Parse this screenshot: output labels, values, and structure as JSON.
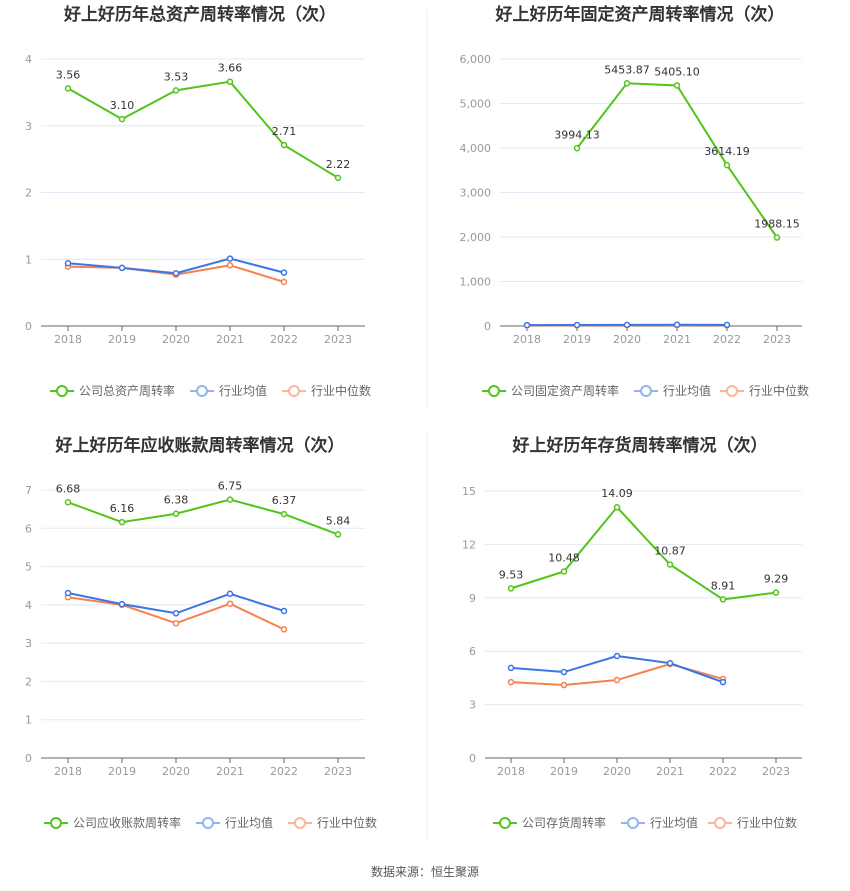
{
  "source": "数据来源：恒生聚源",
  "legend_colors": {
    "company": "#52c41a",
    "avg": "#3b75e6",
    "median": "#f5814f",
    "avg_legend": "#93b4f1",
    "median_legend": "#fbb597"
  },
  "chart_data": [
    {
      "type": "line",
      "title": "好上好历年总资产周转率情况（次）",
      "categories": [
        "2018",
        "2019",
        "2020",
        "2021",
        "2022",
        "2023"
      ],
      "ylim": [
        0,
        4
      ],
      "yticks": [
        "0",
        "1",
        "2",
        "3",
        "4"
      ],
      "legend_position": "bottom",
      "series": [
        {
          "name": "公司总资产周转率",
          "values": [
            3.56,
            3.1,
            3.53,
            3.66,
            2.71,
            2.22
          ],
          "labels": [
            "3.56",
            "3.10",
            "3.53",
            "3.66",
            "2.71",
            "2.22"
          ]
        },
        {
          "name": "行业均值",
          "values": [
            0.94,
            0.87,
            0.79,
            1.01,
            0.8,
            null
          ]
        },
        {
          "name": "行业中位数",
          "values": [
            0.89,
            0.87,
            0.77,
            0.91,
            0.66,
            null
          ]
        }
      ]
    },
    {
      "type": "line",
      "title": "好上好历年固定资产周转率情况（次）",
      "categories": [
        "2018",
        "2019",
        "2020",
        "2021",
        "2022",
        "2023"
      ],
      "ylim": [
        0,
        6000
      ],
      "yticks": [
        "0",
        "1,000",
        "2,000",
        "3,000",
        "4,000",
        "5,000",
        "6,000"
      ],
      "legend_position": "bottom",
      "series": [
        {
          "name": "公司固定资产周转率",
          "values": [
            null,
            3994.13,
            5453.87,
            5405.1,
            3614.19,
            1988.15
          ],
          "labels": [
            null,
            "3994.13",
            "5453.87",
            "5405.10",
            "3614.19",
            "1988.15"
          ]
        },
        {
          "name": "行业均值",
          "values": [
            20,
            22,
            25,
            28,
            24,
            null
          ]
        },
        {
          "name": "行业中位数",
          "values": [
            15,
            16,
            18,
            20,
            17,
            null
          ]
        }
      ]
    },
    {
      "type": "line",
      "title": "好上好历年应收账款周转率情况（次）",
      "categories": [
        "2018",
        "2019",
        "2020",
        "2021",
        "2022",
        "2023"
      ],
      "ylim": [
        0,
        7
      ],
      "yticks": [
        "0",
        "1",
        "2",
        "3",
        "4",
        "5",
        "6",
        "7"
      ],
      "legend_position": "bottom",
      "series": [
        {
          "name": "公司应收账款周转率",
          "values": [
            6.68,
            6.16,
            6.38,
            6.75,
            6.37,
            5.84
          ],
          "labels": [
            "6.68",
            "6.16",
            "6.38",
            "6.75",
            "6.37",
            "5.84"
          ]
        },
        {
          "name": "行业均值",
          "values": [
            4.31,
            4.02,
            3.78,
            4.29,
            3.84,
            null
          ]
        },
        {
          "name": "行业中位数",
          "values": [
            4.2,
            4.0,
            3.52,
            4.03,
            3.36,
            null
          ]
        }
      ]
    },
    {
      "type": "line",
      "title": "好上好历年存货周转率情况（次）",
      "categories": [
        "2018",
        "2019",
        "2020",
        "2021",
        "2022",
        "2023"
      ],
      "ylim": [
        0,
        15
      ],
      "yticks": [
        "0",
        "3",
        "6",
        "9",
        "12",
        "15"
      ],
      "legend_position": "bottom",
      "series": [
        {
          "name": "公司存货周转率",
          "values": [
            9.53,
            10.48,
            14.09,
            10.87,
            8.91,
            9.29
          ],
          "labels": [
            "9.53",
            "10.48",
            "14.09",
            "10.87",
            "8.91",
            "9.29"
          ]
        },
        {
          "name": "行业均值",
          "values": [
            5.06,
            4.83,
            5.73,
            5.33,
            4.26,
            null
          ]
        },
        {
          "name": "行业中位数",
          "values": [
            4.26,
            4.1,
            4.38,
            5.28,
            4.44,
            null
          ]
        }
      ]
    }
  ]
}
